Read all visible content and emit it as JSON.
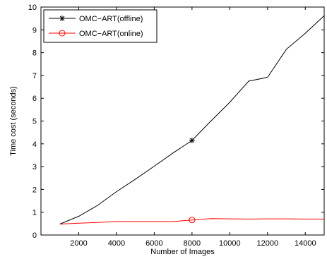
{
  "chart_data": {
    "type": "line",
    "title": "",
    "xlabel": "Number of Images",
    "ylabel": "Time cost (seconds)",
    "xlim": [
      0,
      15000
    ],
    "ylim": [
      0,
      10
    ],
    "xticks": [
      2000,
      4000,
      6000,
      8000,
      10000,
      12000,
      14000
    ],
    "yticks": [
      0,
      1,
      2,
      3,
      4,
      5,
      6,
      7,
      8,
      9,
      10
    ],
    "grid": false,
    "legend_position": "top-left",
    "series": [
      {
        "name": "OMC−ART(offline)",
        "color": "#000000",
        "marker": "asterisk",
        "x": [
          1000,
          2000,
          3000,
          4000,
          5000,
          6000,
          7000,
          8000,
          9000,
          10000,
          11000,
          12000,
          13000,
          14000,
          15000
        ],
        "y": [
          0.48,
          0.82,
          1.3,
          1.9,
          2.45,
          3.02,
          3.6,
          4.15,
          5.0,
          5.82,
          6.75,
          6.92,
          8.15,
          8.85,
          9.62
        ],
        "marker_x": [
          8000
        ],
        "marker_y": [
          4.15
        ]
      },
      {
        "name": "OMC−ART(online)",
        "color": "#ff0000",
        "marker": "circle",
        "x": [
          1000,
          2000,
          3000,
          4000,
          5000,
          6000,
          7000,
          8000,
          9000,
          10000,
          11000,
          12000,
          13000,
          14000,
          15000
        ],
        "y": [
          0.48,
          0.52,
          0.55,
          0.59,
          0.59,
          0.59,
          0.59,
          0.66,
          0.72,
          0.71,
          0.7,
          0.71,
          0.71,
          0.7,
          0.7
        ],
        "marker_x": [
          8000
        ],
        "marker_y": [
          0.66
        ]
      }
    ]
  }
}
